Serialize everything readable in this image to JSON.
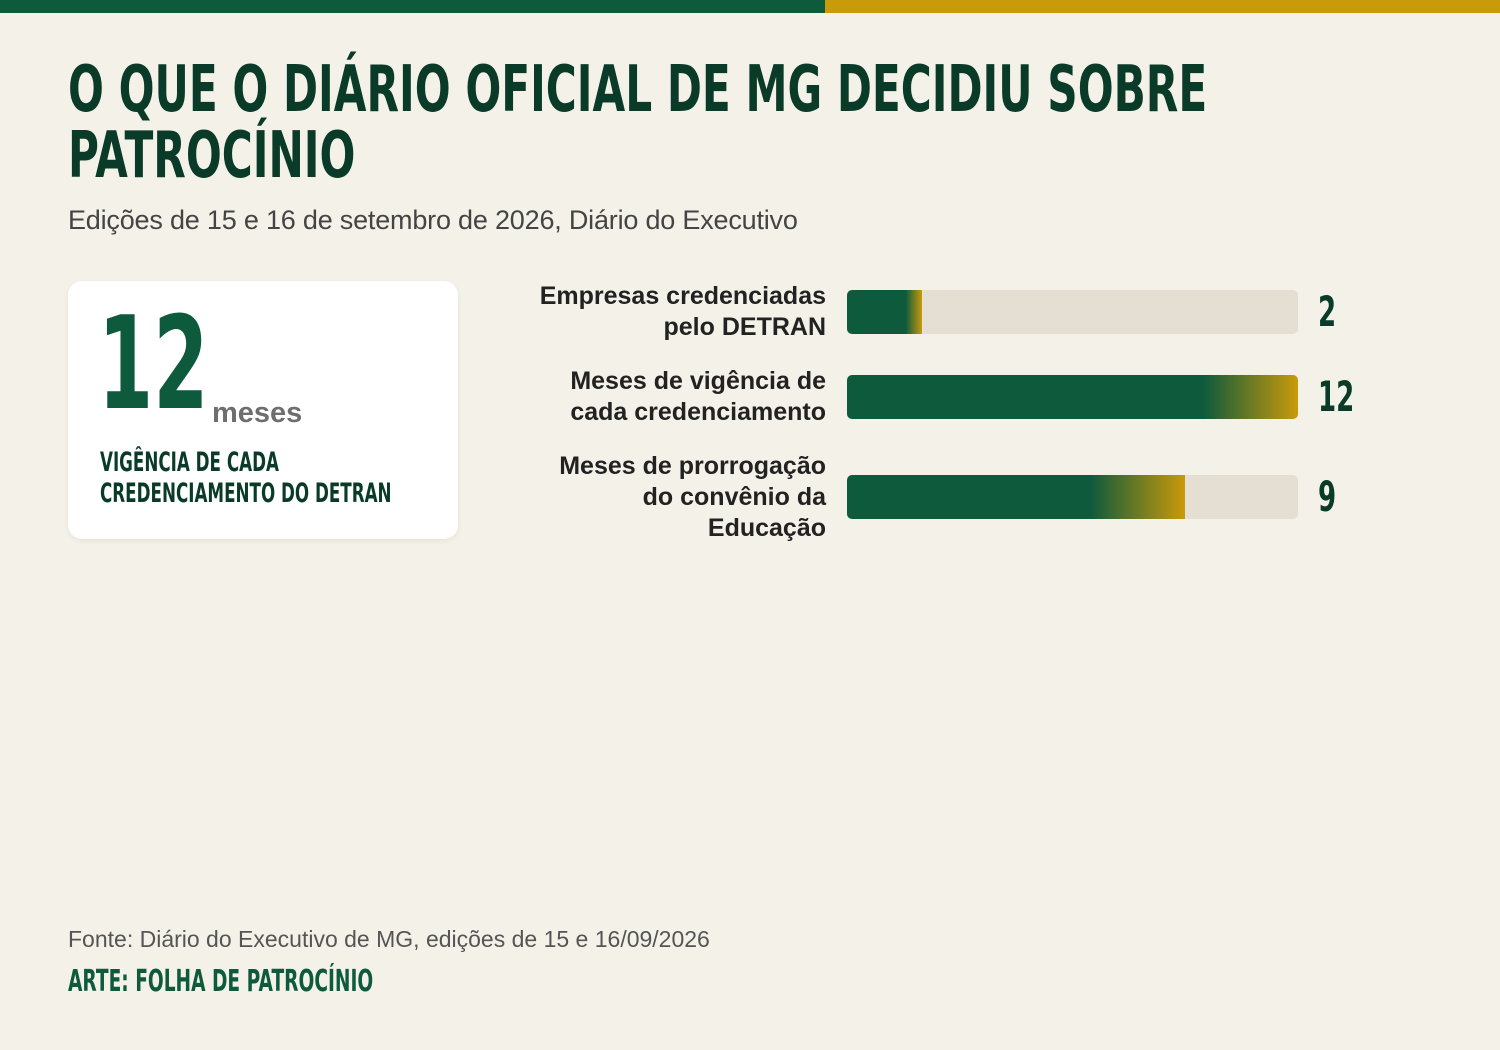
{
  "header": {
    "title_lines": [
      "O QUE O DIÁRIO OFICIAL DE MG DECIDIU SOBRE",
      "PATROCÍNIO"
    ],
    "subtitle": "Edições de 15 e 16 de setembro de 2026, Diário do Executivo"
  },
  "stat_card": {
    "value": "12",
    "unit": "meses",
    "label_lines": [
      "VIGÊNCIA DE CADA",
      "CREDENCIAMENTO DO DETRAN"
    ]
  },
  "chart_data": {
    "type": "bar",
    "orientation": "horizontal",
    "categories": [
      "Empresas credenciadas pelo DETRAN",
      "Meses de vigência de cada credenciamento",
      "Meses de prorrogação do convênio da Educação"
    ],
    "label_lines": [
      [
        "Empresas credenciadas",
        "pelo DETRAN"
      ],
      [
        "Meses de vigência de",
        "cada credenciamento"
      ],
      [
        "Meses de prorrogação",
        "do convênio da",
        "Educação"
      ]
    ],
    "values": [
      2,
      12,
      9
    ],
    "xlim": [
      0,
      12
    ],
    "grid": false,
    "colors": {
      "bar_start": "#0d5a3c",
      "bar_end": "#c99a0a",
      "track": "#e4dfd2"
    }
  },
  "footer": {
    "source": "Fonte: Diário do Executivo de MG, edições de 15 e 16/09/2026",
    "credit": "ARTE: FOLHA DE PATROCÍNIO"
  },
  "colors": {
    "background": "#f4f1e8",
    "green": "#0d5a3c",
    "dark_green": "#0a3a28",
    "gold": "#c99a0a"
  }
}
